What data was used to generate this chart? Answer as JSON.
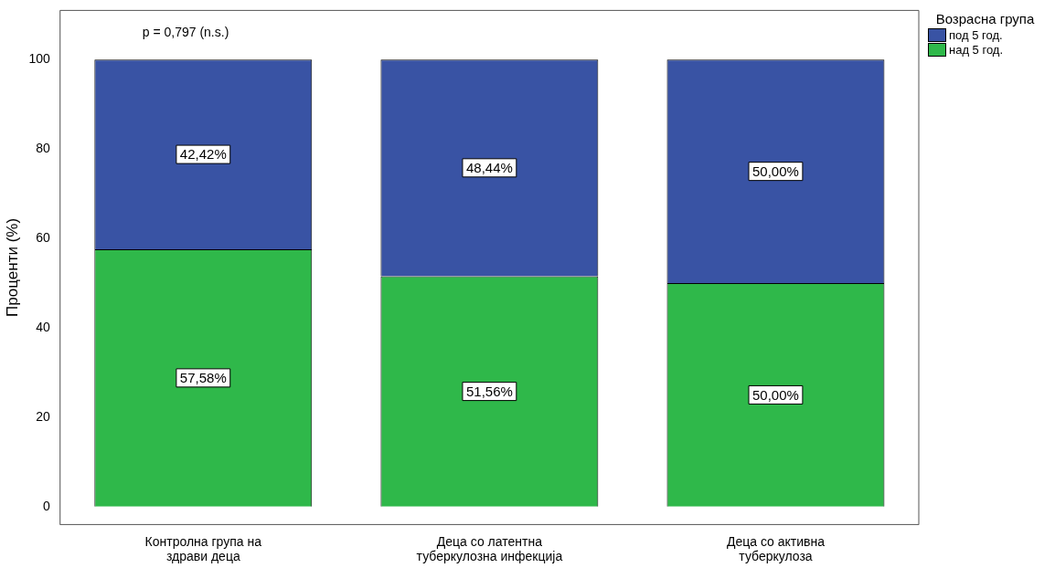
{
  "chart_data": {
    "type": "bar",
    "stacked": true,
    "ylabel": "Проценти (%)",
    "legend_title": "Возрасна група",
    "legend": "top right",
    "grid": false,
    "categories": [
      "Контролна група на здрави деца",
      "Деца со латентна туберкулозна инфекција",
      "Деца со активна туберкулоза"
    ],
    "series": [
      {
        "name": "над 5 год.",
        "color": "#2fb84a",
        "values": [
          57.58,
          51.56,
          50.0
        ],
        "value_labels": [
          "57,58%",
          "51,56%",
          "50,00%"
        ]
      },
      {
        "name": "под 5 год.",
        "color": "#3953a4",
        "values": [
          42.42,
          48.44,
          50.0
        ],
        "value_labels": [
          "42,42%",
          "48,44%",
          "50,00%"
        ]
      }
    ],
    "ylim": [
      -4,
      111
    ],
    "yticks": [
      0,
      20,
      40,
      60,
      80,
      100
    ],
    "annotations": [
      "p = 0,797 (n.s.)"
    ]
  }
}
